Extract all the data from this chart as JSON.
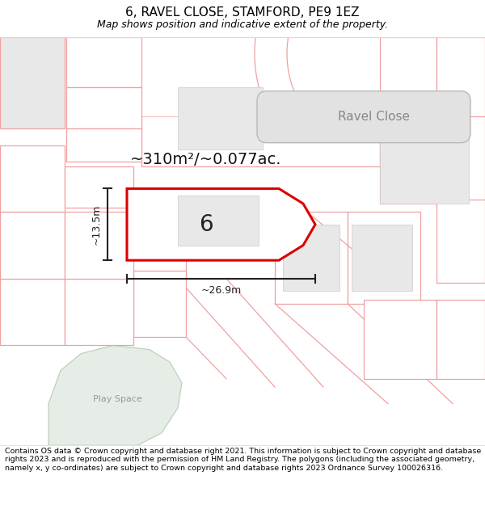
{
  "title": "6, RAVEL CLOSE, STAMFORD, PE9 1EZ",
  "subtitle": "Map shows position and indicative extent of the property.",
  "footer": "Contains OS data © Crown copyright and database right 2021. This information is subject to Crown copyright and database rights 2023 and is reproduced with the permission of HM Land Registry. The polygons (including the associated geometry, namely x, y co-ordinates) are subject to Crown copyright and database rights 2023 Ordnance Survey 100026316.",
  "area_label": "~310m²/~0.077ac.",
  "number_label": "6",
  "width_label": "~26.9m",
  "height_label": "~13.5m",
  "road_label": "Ravel Close",
  "play_space_label": "Play Space",
  "bg_color": "#ffffff",
  "plot_fill": "#ffffff",
  "plot_edge": "#dd0000",
  "plot_edge_width": 2.0,
  "other_plot_edge": "#f0a0a0",
  "other_plot_fill": "#ffffff",
  "shaded_fill": "#e8e8e8",
  "road_fill": "#e4e4e4",
  "road_border": "#bbbbbb",
  "green_fill": "#e6ede6",
  "dim_color": "#222222",
  "title_fontsize": 11,
  "subtitle_fontsize": 9,
  "footer_fontsize": 6.8,
  "area_fontsize": 14,
  "number_fontsize": 20,
  "road_label_fontsize": 11,
  "play_space_fontsize": 8,
  "dim_fontsize": 9
}
